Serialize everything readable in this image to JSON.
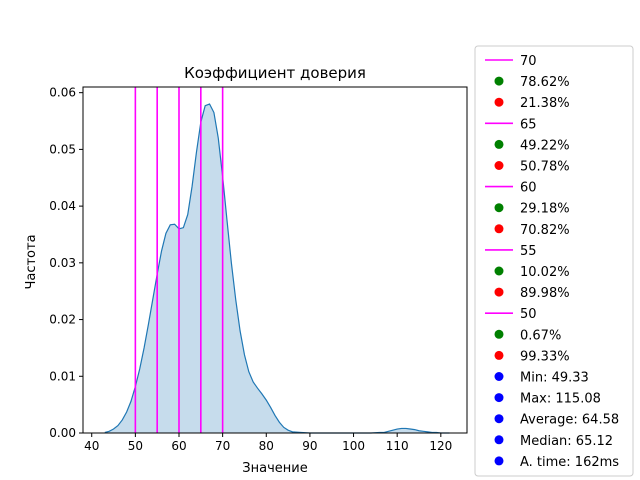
{
  "chart_data": {
    "type": "area",
    "title": "Коэффициент доверия",
    "xlabel": "Значение",
    "ylabel": "Частота",
    "xlim": [
      38,
      126
    ],
    "ylim": [
      0,
      0.061
    ],
    "xticks": [
      40,
      50,
      60,
      70,
      80,
      90,
      100,
      110,
      120
    ],
    "yticks": [
      0.0,
      0.01,
      0.02,
      0.03,
      0.04,
      0.05,
      0.06
    ],
    "ytick_labels": [
      "0.00",
      "0.01",
      "0.02",
      "0.03",
      "0.04",
      "0.05",
      "0.06"
    ],
    "grid": false,
    "density": {
      "color": "#1f77b4",
      "fill_color": "#c6dcec",
      "x": [
        43,
        44,
        45,
        46,
        47,
        48,
        49,
        50,
        51,
        52,
        53,
        54,
        55,
        56,
        57,
        58,
        59,
        60,
        61,
        62,
        63,
        64,
        65,
        66,
        67,
        68,
        69,
        70,
        71,
        72,
        73,
        74,
        75,
        76,
        77,
        78,
        79,
        80,
        81,
        82,
        83,
        84,
        85,
        86,
        88,
        90,
        92,
        94,
        96,
        98,
        100,
        102,
        104,
        106,
        107,
        108,
        109,
        110,
        111,
        112,
        113,
        114,
        115,
        116,
        117,
        118,
        119,
        120,
        121,
        122
      ],
      "y": [
        0.0001,
        0.0003,
        0.0007,
        0.0013,
        0.0023,
        0.0037,
        0.0056,
        0.0082,
        0.0113,
        0.015,
        0.0192,
        0.0236,
        0.028,
        0.0321,
        0.0352,
        0.0367,
        0.0368,
        0.036,
        0.0362,
        0.0385,
        0.0435,
        0.0495,
        0.0548,
        0.0577,
        0.058,
        0.0565,
        0.052,
        0.0452,
        0.0375,
        0.03,
        0.0235,
        0.018,
        0.0138,
        0.0108,
        0.009,
        0.0079,
        0.0069,
        0.0058,
        0.0045,
        0.0031,
        0.0019,
        0.001,
        0.0005,
        0.0002,
        0.0001,
        0.0,
        0.0,
        0.0,
        0.0,
        0.0,
        0.0,
        0.0,
        0.0,
        0.0001,
        0.0001,
        0.0003,
        0.0005,
        0.0007,
        0.0008,
        0.0008,
        0.0007,
        0.0006,
        0.0004,
        0.0003,
        0.0002,
        0.0001,
        0.0001,
        0.0,
        0.0,
        0.0
      ]
    },
    "vlines": {
      "color": "#ff00ff",
      "x": [
        50,
        55,
        60,
        65,
        70
      ]
    },
    "legend": {
      "placement": "outside-right",
      "entries": [
        {
          "kind": "line",
          "color": "#ff00ff",
          "label": "70"
        },
        {
          "kind": "dot",
          "color": "#008000",
          "label": "78.62%"
        },
        {
          "kind": "dot",
          "color": "#ff0000",
          "label": "21.38%"
        },
        {
          "kind": "line",
          "color": "#ff00ff",
          "label": "65"
        },
        {
          "kind": "dot",
          "color": "#008000",
          "label": "49.22%"
        },
        {
          "kind": "dot",
          "color": "#ff0000",
          "label": "50.78%"
        },
        {
          "kind": "line",
          "color": "#ff00ff",
          "label": "60"
        },
        {
          "kind": "dot",
          "color": "#008000",
          "label": "29.18%"
        },
        {
          "kind": "dot",
          "color": "#ff0000",
          "label": "70.82%"
        },
        {
          "kind": "line",
          "color": "#ff00ff",
          "label": "55"
        },
        {
          "kind": "dot",
          "color": "#008000",
          "label": "10.02%"
        },
        {
          "kind": "dot",
          "color": "#ff0000",
          "label": "89.98%"
        },
        {
          "kind": "line",
          "color": "#ff00ff",
          "label": "50"
        },
        {
          "kind": "dot",
          "color": "#008000",
          "label": "0.67%"
        },
        {
          "kind": "dot",
          "color": "#ff0000",
          "label": "99.33%"
        },
        {
          "kind": "dot",
          "color": "#0000ff",
          "label": "Min: 49.33"
        },
        {
          "kind": "dot",
          "color": "#0000ff",
          "label": "Max: 115.08"
        },
        {
          "kind": "dot",
          "color": "#0000ff",
          "label": "Average: 64.58"
        },
        {
          "kind": "dot",
          "color": "#0000ff",
          "label": "Median: 65.12"
        },
        {
          "kind": "dot",
          "color": "#0000ff",
          "label": "A. time: 162ms"
        }
      ]
    }
  }
}
